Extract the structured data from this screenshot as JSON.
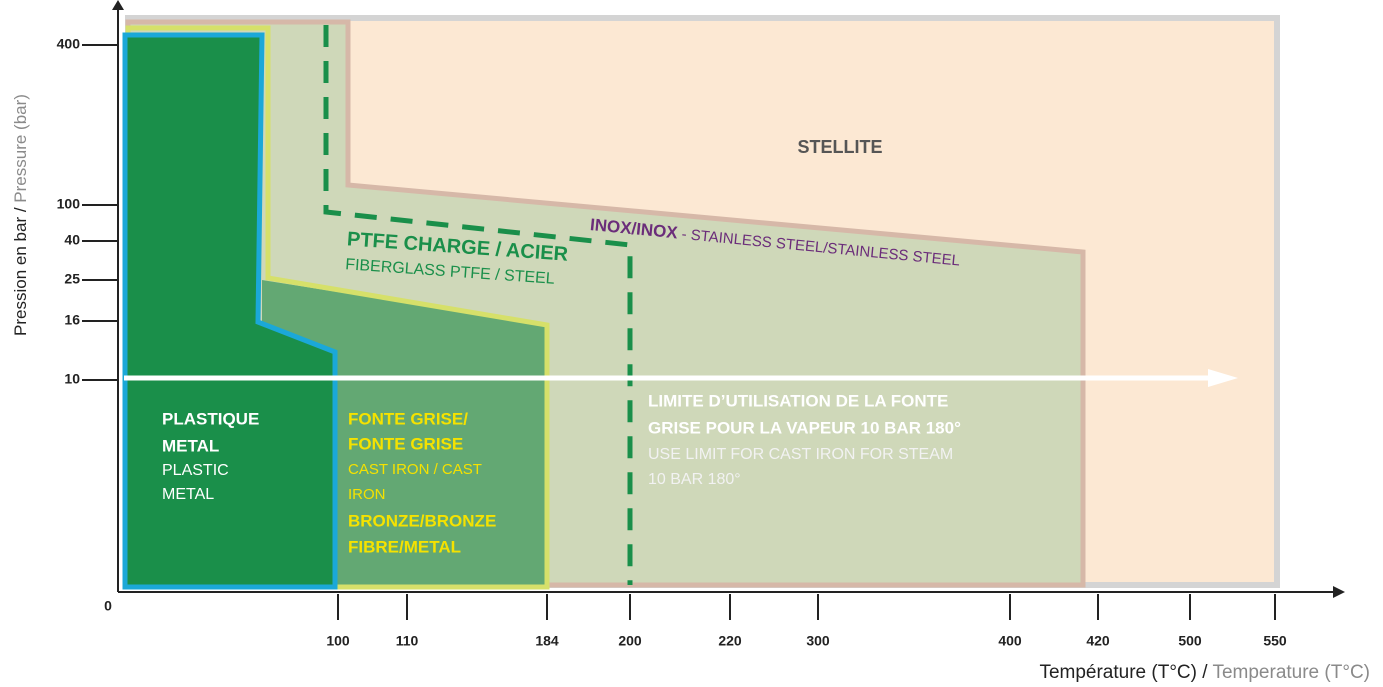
{
  "y_axis": {
    "label": "Pression en bar /",
    "label_en": " Pressure (bar)",
    "ticks": [
      "400",
      "100",
      "40",
      "25",
      "16",
      "10"
    ]
  },
  "x_axis": {
    "label": "Température (T°C) /",
    "label_en": " Temperature (T°C)",
    "origin": "0",
    "ticks": [
      "100",
      "110",
      "184",
      "200",
      "220",
      "300",
      "400",
      "420",
      "500",
      "550"
    ]
  },
  "zones": {
    "stellite": "STELLITE",
    "inox": {
      "title": "INOX/INOX",
      "subtitle": " - STAINLESS STEEL/STAINLESS STEEL"
    },
    "ptfe": {
      "title": "PTFE CHARGE / ACIER",
      "subtitle": "FIBERGLASS PTFE / STEEL"
    },
    "plastic": {
      "lines_bold": [
        "PLASTIQUE",
        "METAL"
      ],
      "lines": [
        "PLASTIC",
        "METAL"
      ]
    },
    "cast_iron": {
      "lines_bold": [
        "FONTE GRISE/",
        "FONTE GRISE"
      ],
      "lines": [
        "CAST IRON / CAST",
        "IRON"
      ],
      "lines_bold_2": [
        "BRONZE/BRONZE",
        "FIBRE/METAL"
      ]
    },
    "limit": {
      "lines_bold": [
        "LIMITE D’UTILISATION DE LA FONTE",
        "GRISE POUR LA VAPEUR 10 BAR 180°"
      ],
      "lines": [
        "USE LIMIT FOR CAST IRON FOR STEAM",
        "10 BAR 180°"
      ]
    }
  }
}
